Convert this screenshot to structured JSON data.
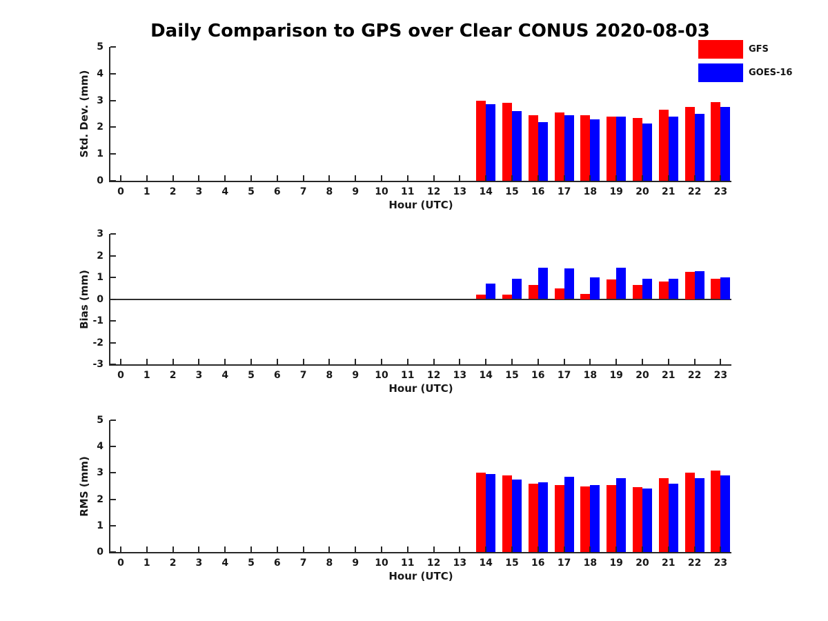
{
  "title": "Daily Comparison to GPS over Clear CONUS 2020-08-03",
  "colors": {
    "gfs": "#ff0000",
    "goes16": "#0000ff",
    "axis": "#262626",
    "text": "#171717"
  },
  "legend": {
    "position": "top-right-outside",
    "items": [
      {
        "label": "GFS",
        "color": "#ff0000"
      },
      {
        "label": "GOES-16",
        "color": "#0000ff"
      }
    ]
  },
  "x_axis": {
    "label": "Hour (UTC)",
    "ticks": [
      0,
      1,
      2,
      3,
      4,
      5,
      6,
      7,
      8,
      9,
      10,
      11,
      12,
      13,
      14,
      15,
      16,
      17,
      18,
      19,
      20,
      21,
      22,
      23
    ]
  },
  "chart_data": [
    {
      "type": "bar",
      "name": "std-dev",
      "ylabel": "Std. Dev. (mm)",
      "xlabel": "Hour (UTC)",
      "ylim": [
        0,
        5
      ],
      "yticks": [
        0,
        1,
        2,
        3,
        4,
        5
      ],
      "grid": false,
      "zero_line": false,
      "categories": [
        14,
        15,
        16,
        17,
        18,
        19,
        20,
        21,
        22,
        23
      ],
      "series": [
        {
          "name": "GFS",
          "color": "#ff0000",
          "values": [
            3.0,
            2.9,
            2.45,
            2.55,
            2.45,
            2.4,
            2.35,
            2.65,
            2.75,
            2.95
          ]
        },
        {
          "name": "GOES-16",
          "color": "#0000ff",
          "values": [
            2.85,
            2.6,
            2.2,
            2.45,
            2.3,
            2.4,
            2.15,
            2.4,
            2.5,
            2.75
          ]
        }
      ]
    },
    {
      "type": "bar",
      "name": "bias",
      "ylabel": "Bias (mm)",
      "xlabel": "Hour (UTC)",
      "ylim": [
        -3,
        3
      ],
      "yticks": [
        -3,
        -2,
        -1,
        0,
        1,
        2,
        3
      ],
      "grid": false,
      "zero_line": true,
      "categories": [
        14,
        15,
        16,
        17,
        18,
        19,
        20,
        21,
        22,
        23
      ],
      "series": [
        {
          "name": "GFS",
          "color": "#ff0000",
          "values": [
            0.2,
            0.2,
            0.65,
            0.5,
            0.25,
            0.9,
            0.65,
            0.8,
            1.25,
            0.95
          ]
        },
        {
          "name": "GOES-16",
          "color": "#0000ff",
          "values": [
            0.7,
            0.95,
            1.45,
            1.4,
            1.0,
            1.45,
            0.95,
            0.95,
            1.3,
            1.0
          ]
        }
      ]
    },
    {
      "type": "bar",
      "name": "rms",
      "ylabel": "RMS (mm)",
      "xlabel": "Hour (UTC)",
      "ylim": [
        0,
        5
      ],
      "yticks": [
        0,
        1,
        2,
        3,
        4,
        5
      ],
      "grid": false,
      "zero_line": false,
      "categories": [
        14,
        15,
        16,
        17,
        18,
        19,
        20,
        21,
        22,
        23
      ],
      "series": [
        {
          "name": "GFS",
          "color": "#ff0000",
          "values": [
            3.0,
            2.9,
            2.6,
            2.55,
            2.5,
            2.55,
            2.45,
            2.8,
            3.0,
            3.1
          ]
        },
        {
          "name": "GOES-16",
          "color": "#0000ff",
          "values": [
            2.95,
            2.75,
            2.65,
            2.85,
            2.55,
            2.8,
            2.4,
            2.6,
            2.8,
            2.9
          ]
        }
      ]
    }
  ]
}
